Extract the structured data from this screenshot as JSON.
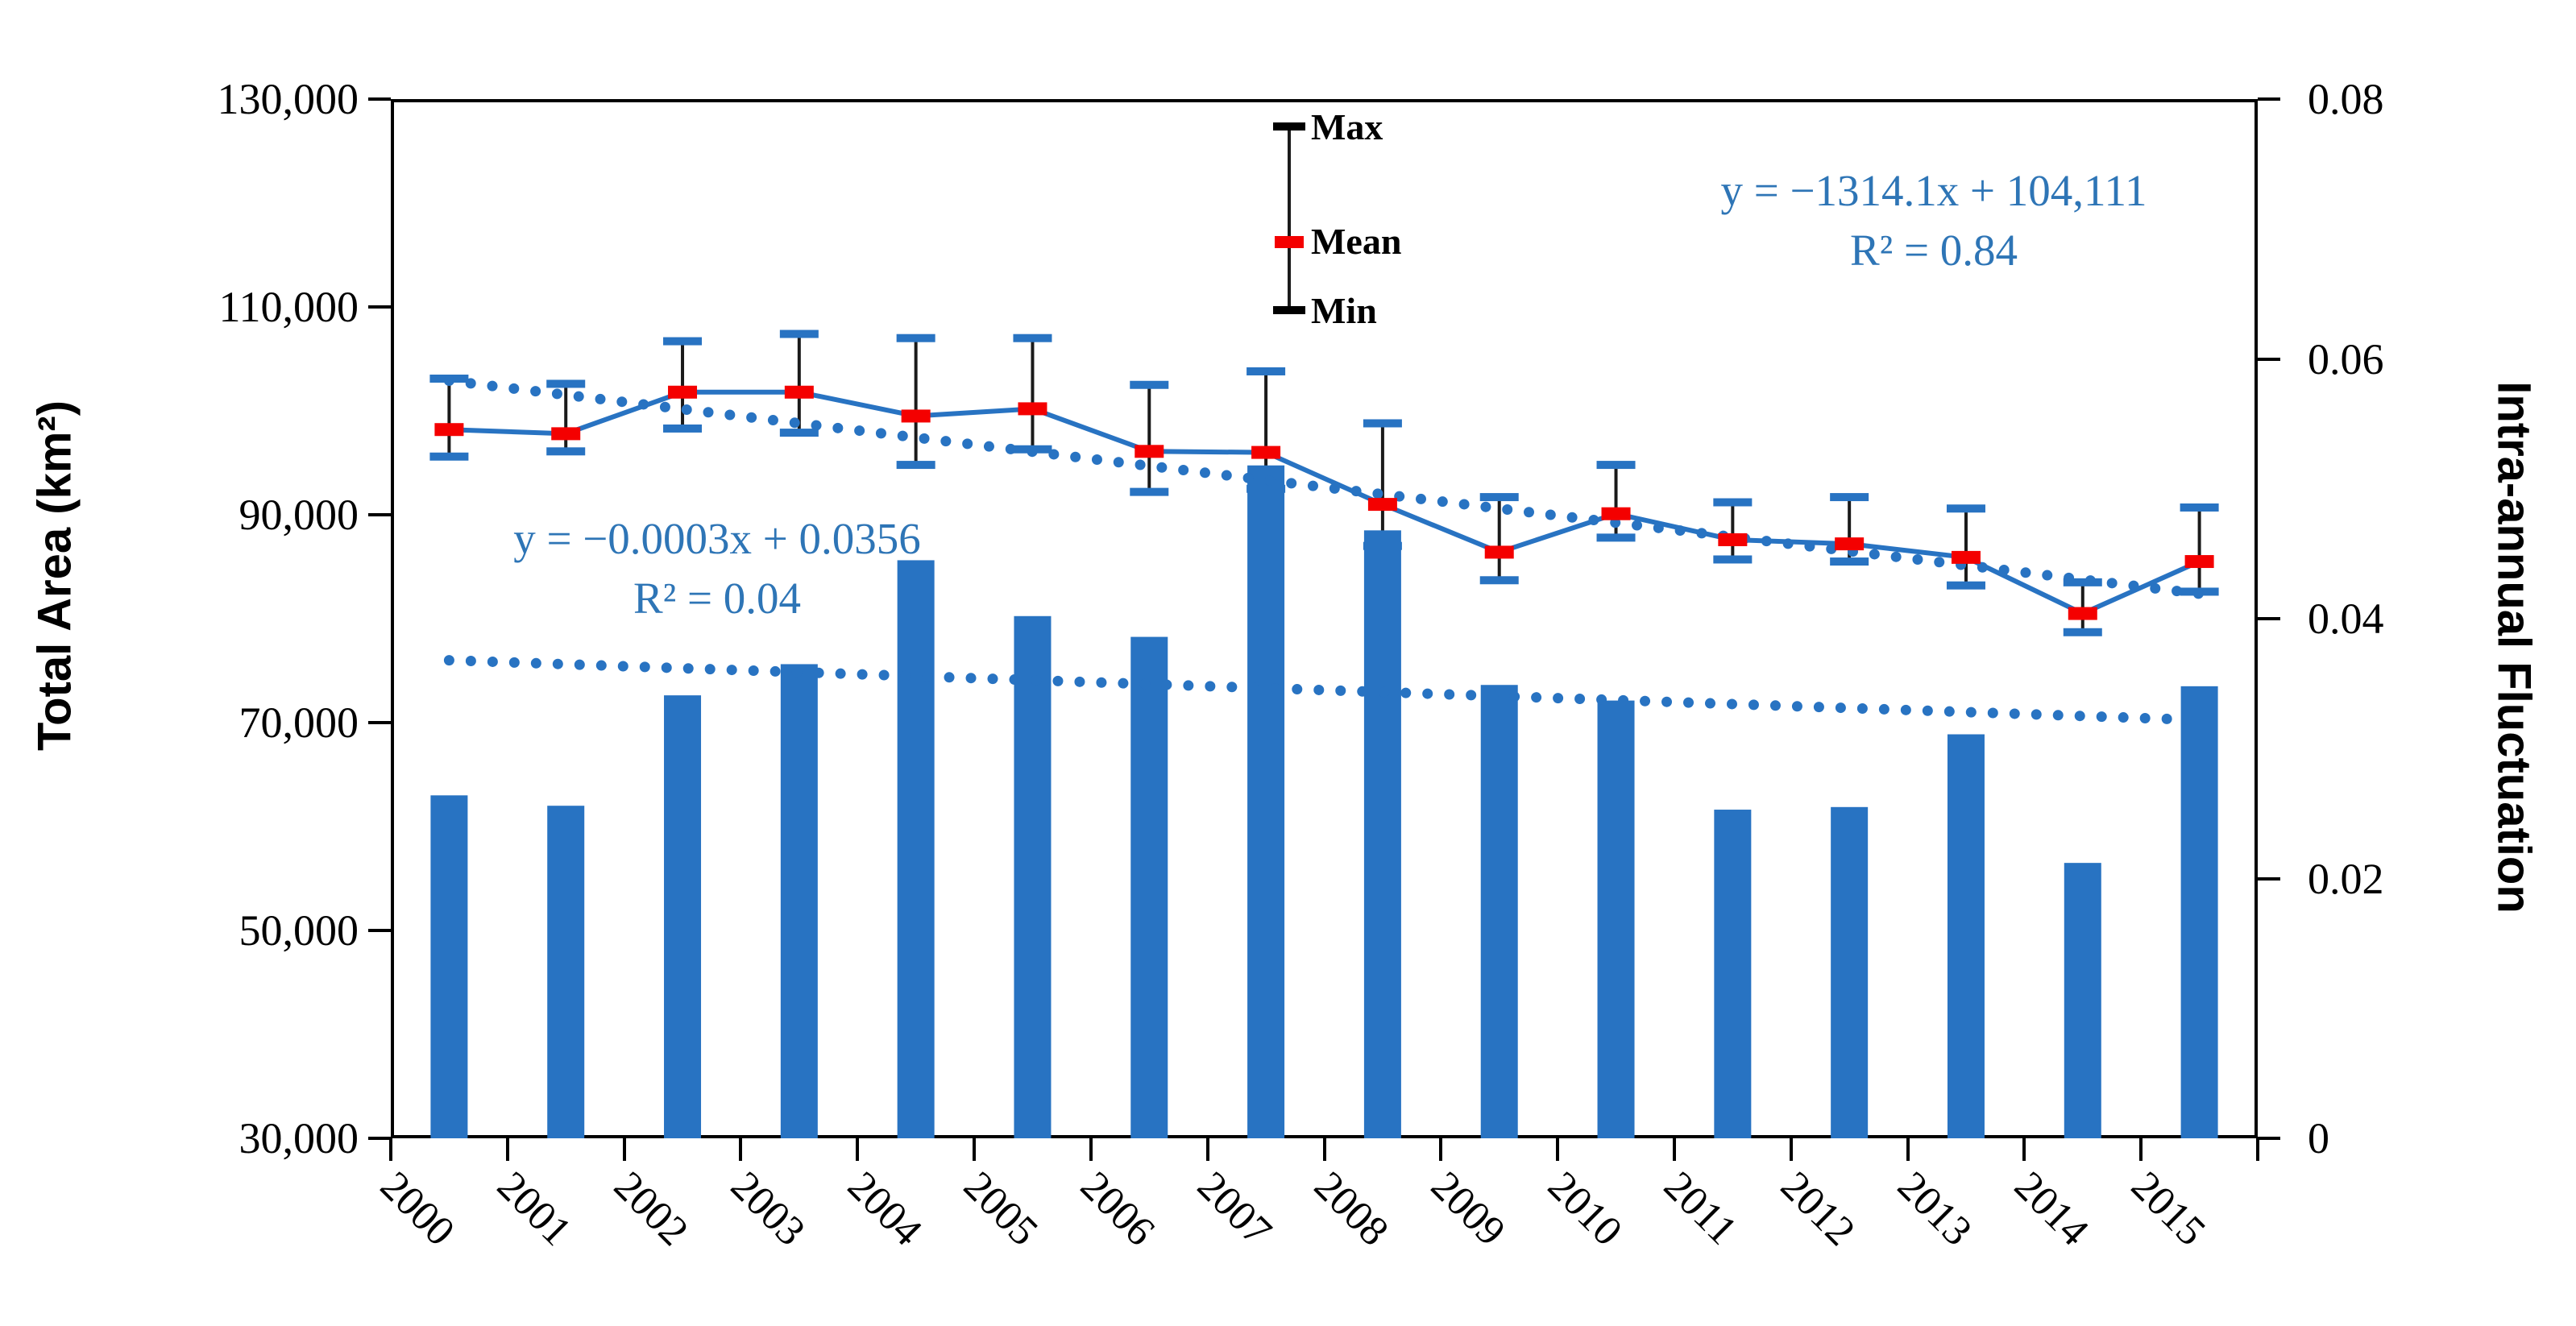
{
  "chart_data": {
    "type": "bar",
    "subtype": "combo-bar-line-errorbars",
    "categories": [
      "2000",
      "2001",
      "2002",
      "2003",
      "2004",
      "2005",
      "2006",
      "2007",
      "2008",
      "2009",
      "2010",
      "2011",
      "2012",
      "2013",
      "2014",
      "2015"
    ],
    "series": [
      {
        "name": "Intra-annual Fluctuation",
        "type": "bar",
        "axis": "right",
        "values": [
          0.0264,
          0.0256,
          0.0341,
          0.0365,
          0.0445,
          0.0402,
          0.0386,
          0.0518,
          0.0468,
          0.0349,
          0.0337,
          0.0253,
          0.0255,
          0.0311,
          0.0212,
          0.0348
        ]
      },
      {
        "name": "Mean",
        "type": "line",
        "axis": "left",
        "values": [
          98200,
          97800,
          101800,
          101800,
          99500,
          100200,
          96100,
          96000,
          91000,
          86400,
          90100,
          87600,
          87200,
          85900,
          80500,
          85500
        ]
      },
      {
        "name": "Max",
        "type": "errorbar-top",
        "axis": "left",
        "values": [
          103100,
          102600,
          106700,
          107400,
          107000,
          107000,
          102500,
          103800,
          98800,
          91700,
          94800,
          91200,
          91700,
          90600,
          83500,
          90700
        ]
      },
      {
        "name": "Min",
        "type": "errorbar-bottom",
        "axis": "left",
        "values": [
          95600,
          96100,
          98300,
          97900,
          94800,
          96300,
          92200,
          92500,
          87000,
          83700,
          87800,
          85700,
          85500,
          83200,
          78700,
          82600
        ]
      }
    ],
    "left_axis": {
      "title": "Total Area (km²)",
      "range": [
        30000,
        130000
      ],
      "tick_values": [
        130000,
        110000,
        90000,
        70000,
        50000,
        30000
      ],
      "tick_labels": [
        "130,000",
        "110,000",
        "90,000",
        "70,000",
        "50,000",
        "30,000"
      ]
    },
    "right_axis": {
      "title": "Intra-annual Fluctuation",
      "range": [
        0,
        0.08
      ],
      "tick_values": [
        0.08,
        0.06,
        0.04,
        0.02,
        0
      ],
      "tick_labels": [
        "0.08",
        "0.06",
        "0.04",
        "0.02",
        "0"
      ]
    },
    "legend": {
      "items": [
        "Max",
        "Mean",
        "Min"
      ]
    },
    "annotations": {
      "area_trend": {
        "line1": "y = −1314.1x + 104,111",
        "line2": "R² = 0.84",
        "start_value": 102900,
        "end_value": 82400
      },
      "fluct_trend": {
        "line1": "y = −0.0003x + 0.0356",
        "line2": "R² = 0.04",
        "start_value": 0.0368,
        "end_value": 0.0322
      }
    },
    "layout": {
      "grid": false,
      "legend_position": "inside-top-center"
    },
    "colors": {
      "bar": "#2873c2",
      "line": "#2873c2",
      "error_cap": "#2873c2",
      "error_stem": "#1a1a1a",
      "mean_marker": "#f40000",
      "equation_text": "#2e75b6",
      "axis_text": "#000000"
    }
  }
}
